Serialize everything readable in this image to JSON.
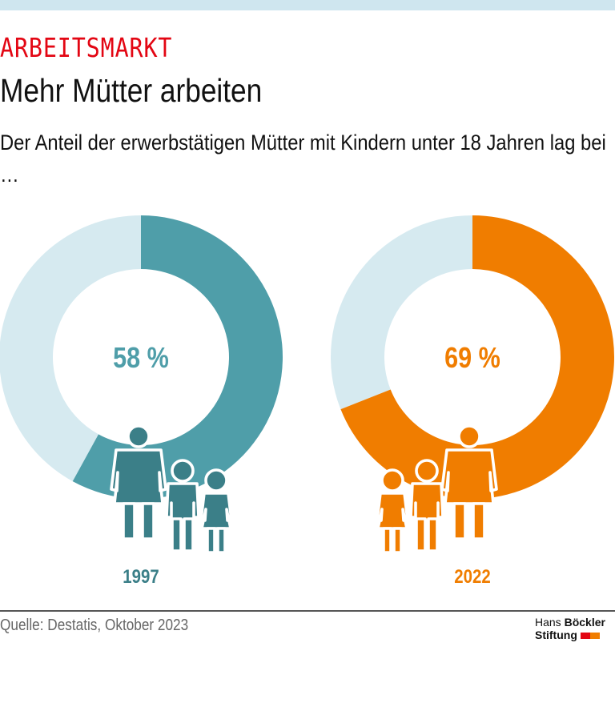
{
  "header": {
    "kicker": "ARBEITSMARKT",
    "title": "Mehr Mütter arbeiten",
    "subtitle": "Der Anteil der erwerbstätigen Mütter mit Kindern unter 18 Jahren lag bei …"
  },
  "chart_data": {
    "type": "pie",
    "charts": [
      {
        "category": "1997",
        "value": 58,
        "label": "58 %",
        "color": "#4f9ea9",
        "remainder_color": "#d6eaf0",
        "figure_color": "#3b7f88"
      },
      {
        "category": "2022",
        "value": 69,
        "label": "69 %",
        "color": "#f07d00",
        "remainder_color": "#d6eaf0",
        "figure_color": "#f07d00"
      }
    ],
    "unit": "%",
    "donut": true
  },
  "footer": {
    "source": "Quelle: Destatis, Oktober 2023",
    "logo_line1_a": "Hans ",
    "logo_line1_b": "Böckler",
    "logo_line2": "Stiftung",
    "logo_colors": [
      "#e30613",
      "#f07d00"
    ]
  }
}
